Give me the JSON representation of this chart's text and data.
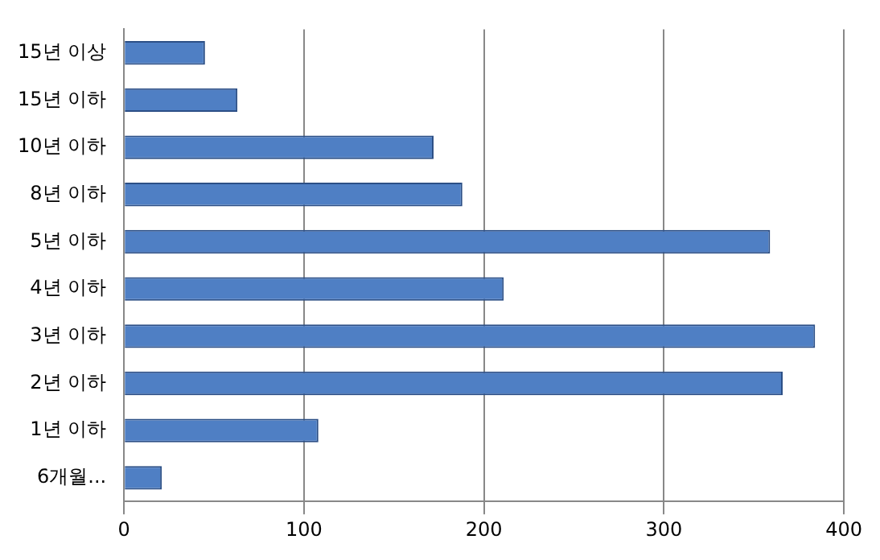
{
  "chart_data": {
    "type": "bar",
    "orientation": "horizontal",
    "categories": [
      "15년 이상",
      "15년 이하",
      "10년 이하",
      "8년 이하",
      "5년 이하",
      "4년 이하",
      "3년 이하",
      "2년 이하",
      "1년 이하",
      "6개월..."
    ],
    "values": [
      45,
      63,
      172,
      188,
      359,
      211,
      384,
      366,
      108,
      21
    ],
    "color": "#4f7fc4",
    "xlim": [
      0,
      400
    ],
    "xticks": [
      0,
      100,
      200,
      300,
      400
    ],
    "grid": "x",
    "legend": false
  }
}
